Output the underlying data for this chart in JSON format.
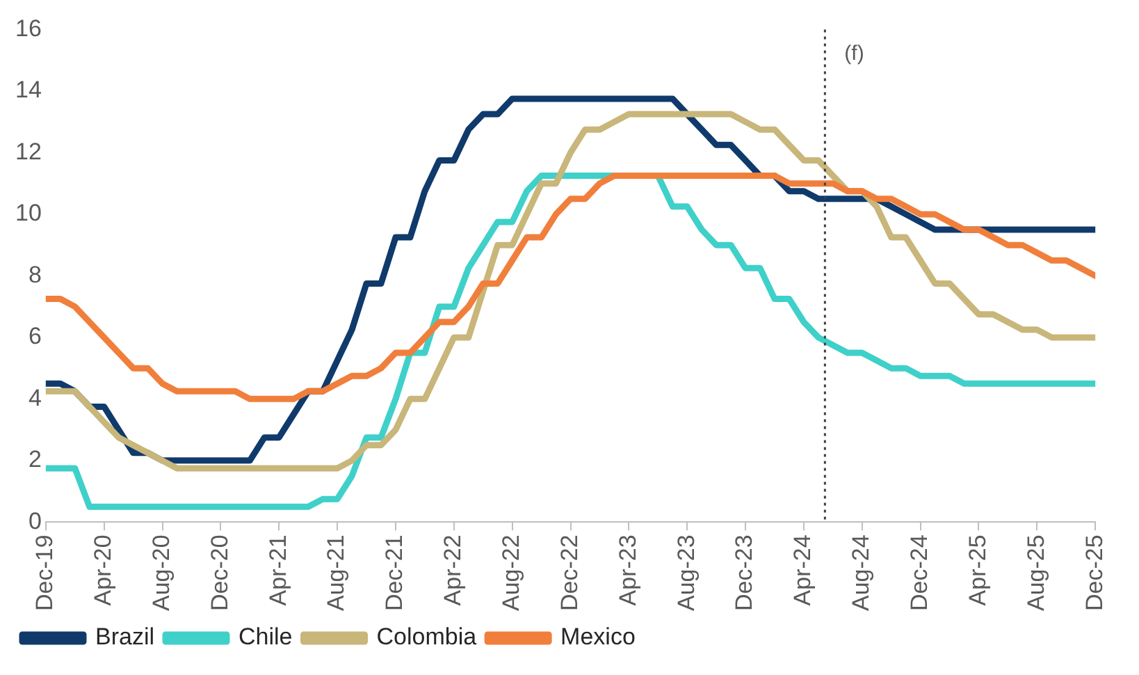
{
  "chart_data": {
    "type": "line",
    "x": [
      "2019-12",
      "2020-01",
      "2020-02",
      "2020-03",
      "2020-04",
      "2020-05",
      "2020-06",
      "2020-07",
      "2020-08",
      "2020-09",
      "2020-10",
      "2020-11",
      "2020-12",
      "2021-01",
      "2021-02",
      "2021-03",
      "2021-04",
      "2021-05",
      "2021-06",
      "2021-07",
      "2021-08",
      "2021-09",
      "2021-10",
      "2021-11",
      "2021-12",
      "2022-01",
      "2022-02",
      "2022-03",
      "2022-04",
      "2022-05",
      "2022-06",
      "2022-07",
      "2022-08",
      "2022-09",
      "2022-10",
      "2022-11",
      "2022-12",
      "2023-01",
      "2023-02",
      "2023-03",
      "2023-04",
      "2023-05",
      "2023-06",
      "2023-07",
      "2023-08",
      "2023-09",
      "2023-10",
      "2023-11",
      "2023-12",
      "2024-01",
      "2024-02",
      "2024-03",
      "2024-04",
      "2024-05",
      "2024-06",
      "2024-07",
      "2024-08",
      "2024-09",
      "2024-10",
      "2024-11",
      "2024-12",
      "2025-01",
      "2025-02",
      "2025-03",
      "2025-04",
      "2025-05",
      "2025-06",
      "2025-07",
      "2025-08",
      "2025-09",
      "2025-10",
      "2025-11",
      "2025-12"
    ],
    "series": [
      {
        "name": "Brazil",
        "color": "#0f3a6b",
        "values": [
          4.5,
          4.5,
          4.25,
          3.75,
          3.75,
          3.0,
          2.25,
          2.25,
          2.0,
          2.0,
          2.0,
          2.0,
          2.0,
          2.0,
          2.0,
          2.75,
          2.75,
          3.5,
          4.25,
          4.25,
          5.25,
          6.25,
          7.75,
          7.75,
          9.25,
          9.25,
          10.75,
          11.75,
          11.75,
          12.75,
          13.25,
          13.25,
          13.75,
          13.75,
          13.75,
          13.75,
          13.75,
          13.75,
          13.75,
          13.75,
          13.75,
          13.75,
          13.75,
          13.75,
          13.25,
          12.75,
          12.25,
          12.25,
          11.75,
          11.25,
          11.25,
          10.75,
          10.75,
          10.5,
          10.5,
          10.5,
          10.5,
          10.5,
          10.25,
          10.0,
          9.75,
          9.5,
          9.5,
          9.5,
          9.5,
          9.5,
          9.5,
          9.5,
          9.5,
          9.5,
          9.5,
          9.5,
          9.5
        ]
      },
      {
        "name": "Chile",
        "color": "#3fd0c9",
        "values": [
          1.75,
          1.75,
          1.75,
          0.5,
          0.5,
          0.5,
          0.5,
          0.5,
          0.5,
          0.5,
          0.5,
          0.5,
          0.5,
          0.5,
          0.5,
          0.5,
          0.5,
          0.5,
          0.5,
          0.75,
          0.75,
          1.5,
          2.75,
          2.75,
          4.0,
          5.5,
          5.5,
          7.0,
          7.0,
          8.25,
          9.0,
          9.75,
          9.75,
          10.75,
          11.25,
          11.25,
          11.25,
          11.25,
          11.25,
          11.25,
          11.25,
          11.25,
          11.25,
          10.25,
          10.25,
          9.5,
          9.0,
          9.0,
          8.25,
          8.25,
          7.25,
          7.25,
          6.5,
          6.0,
          5.75,
          5.5,
          5.5,
          5.25,
          5.0,
          5.0,
          4.75,
          4.75,
          4.75,
          4.5,
          4.5,
          4.5,
          4.5,
          4.5,
          4.5,
          4.5,
          4.5,
          4.5,
          4.5
        ]
      },
      {
        "name": "Colombia",
        "color": "#c8b67a",
        "values": [
          4.25,
          4.25,
          4.25,
          3.75,
          3.25,
          2.75,
          2.5,
          2.25,
          2.0,
          1.75,
          1.75,
          1.75,
          1.75,
          1.75,
          1.75,
          1.75,
          1.75,
          1.75,
          1.75,
          1.75,
          1.75,
          2.0,
          2.5,
          2.5,
          3.0,
          4.0,
          4.0,
          5.0,
          6.0,
          6.0,
          7.5,
          9.0,
          9.0,
          10.0,
          11.0,
          11.0,
          12.0,
          12.75,
          12.75,
          13.0,
          13.25,
          13.25,
          13.25,
          13.25,
          13.25,
          13.25,
          13.25,
          13.25,
          13.0,
          12.75,
          12.75,
          12.25,
          11.75,
          11.75,
          11.25,
          10.75,
          10.75,
          10.25,
          9.25,
          9.25,
          8.5,
          7.75,
          7.75,
          7.25,
          6.75,
          6.75,
          6.5,
          6.25,
          6.25,
          6.0,
          6.0,
          6.0,
          6.0
        ]
      },
      {
        "name": "Mexico",
        "color": "#f07f3c",
        "values": [
          7.25,
          7.25,
          7.0,
          6.5,
          6.0,
          5.5,
          5.0,
          5.0,
          4.5,
          4.25,
          4.25,
          4.25,
          4.25,
          4.25,
          4.0,
          4.0,
          4.0,
          4.0,
          4.25,
          4.25,
          4.5,
          4.75,
          4.75,
          5.0,
          5.5,
          5.5,
          6.0,
          6.5,
          6.5,
          7.0,
          7.75,
          7.75,
          8.5,
          9.25,
          9.25,
          10.0,
          10.5,
          10.5,
          11.0,
          11.25,
          11.25,
          11.25,
          11.25,
          11.25,
          11.25,
          11.25,
          11.25,
          11.25,
          11.25,
          11.25,
          11.25,
          11.0,
          11.0,
          11.0,
          11.0,
          10.75,
          10.75,
          10.5,
          10.5,
          10.25,
          10.0,
          10.0,
          9.75,
          9.5,
          9.5,
          9.25,
          9.0,
          9.0,
          8.75,
          8.5,
          8.5,
          8.25,
          8.0
        ]
      }
    ],
    "xlim": [
      "2019-12",
      "2025-12"
    ],
    "xticks": [
      {
        "value": "2019-12",
        "label": "Dec-19"
      },
      {
        "value": "2020-04",
        "label": "Apr-20"
      },
      {
        "value": "2020-08",
        "label": "Aug-20"
      },
      {
        "value": "2020-12",
        "label": "Dec-20"
      },
      {
        "value": "2021-04",
        "label": "Apr-21"
      },
      {
        "value": "2021-08",
        "label": "Aug-21"
      },
      {
        "value": "2021-12",
        "label": "Dec-21"
      },
      {
        "value": "2022-04",
        "label": "Apr-22"
      },
      {
        "value": "2022-08",
        "label": "Aug-22"
      },
      {
        "value": "2022-12",
        "label": "Dec-22"
      },
      {
        "value": "2023-04",
        "label": "Apr-23"
      },
      {
        "value": "2023-08",
        "label": "Aug-23"
      },
      {
        "value": "2023-12",
        "label": "Dec-23"
      },
      {
        "value": "2024-04",
        "label": "Apr-24"
      },
      {
        "value": "2024-08",
        "label": "Aug-24"
      },
      {
        "value": "2024-12",
        "label": "Dec-24"
      },
      {
        "value": "2025-04",
        "label": "Apr-25"
      },
      {
        "value": "2025-08",
        "label": "Aug-25"
      },
      {
        "value": "2025-12",
        "label": "Dec-25"
      }
    ],
    "ylim": [
      0,
      16
    ],
    "yticks": [
      0,
      2,
      4,
      6,
      8,
      10,
      12,
      14,
      16
    ],
    "ref_lines": [
      {
        "axis": "x",
        "value": "2024-05-15",
        "label": "(f)",
        "color": "#404040",
        "line_style": "dotted"
      }
    ],
    "legend": "bottom left",
    "grid": false,
    "marker": "none",
    "line_style": "solid"
  }
}
